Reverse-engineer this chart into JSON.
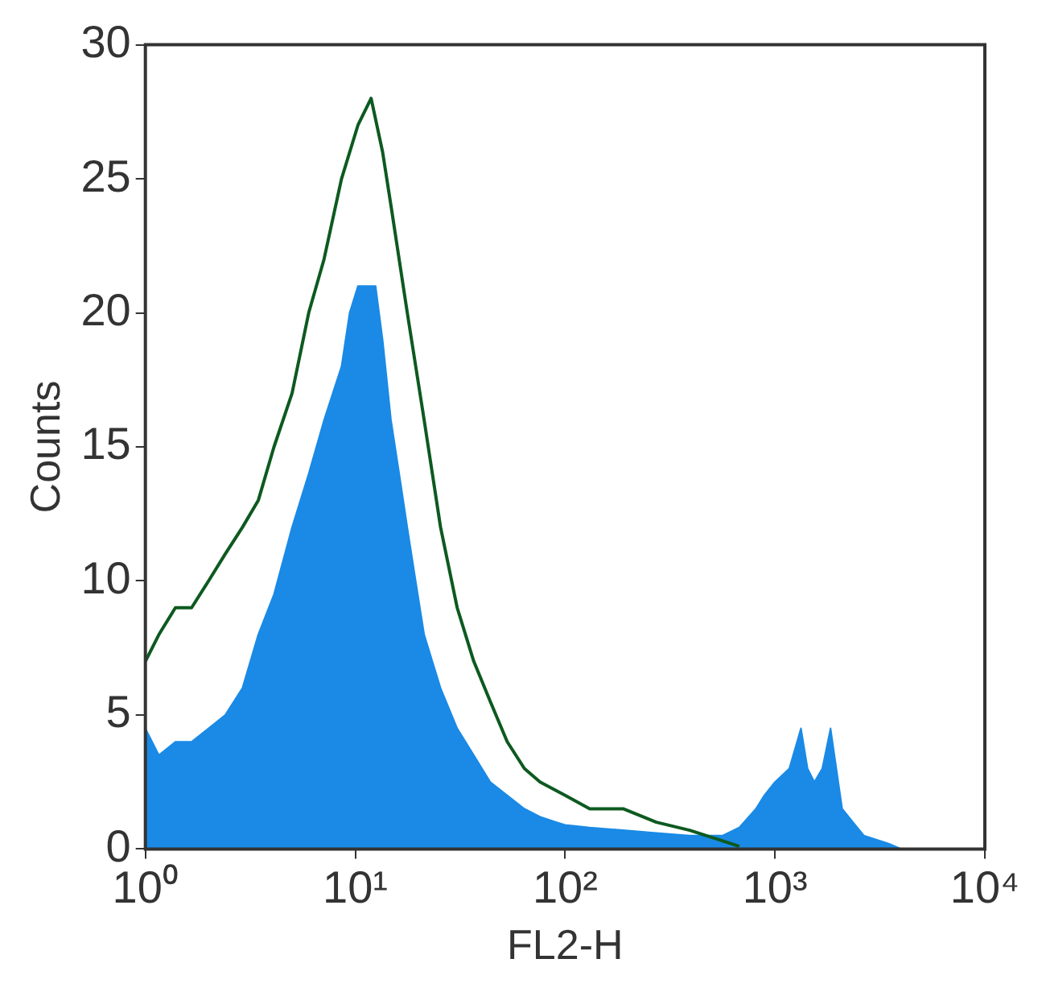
{
  "chart_data": {
    "type": "area",
    "xlabel": "FL2-H",
    "ylabel": "Counts",
    "log": "x",
    "xlim": [
      1,
      10000
    ],
    "ylim": [
      0,
      30
    ],
    "xticks": [
      {
        "value": 1,
        "label": "10⁰"
      },
      {
        "value": 10,
        "label": "10¹"
      },
      {
        "value": 100,
        "label": "10²"
      },
      {
        "value": 1000,
        "label": "10³"
      },
      {
        "value": 10000,
        "label": "10⁴"
      }
    ],
    "yticks": [
      0,
      5,
      10,
      15,
      20,
      25,
      30
    ],
    "grid": false,
    "legend": false,
    "series": [
      {
        "color": "#1a8ae6",
        "x": [
          1,
          1.16,
          1.39,
          1.66,
          2,
          2.4,
          2.9,
          3.45,
          4.1,
          5,
          6,
          7.1,
          8.6,
          9.4,
          10.3,
          11.3,
          12.5,
          13.5,
          14.8,
          16.2,
          17.7,
          19.4,
          21.3,
          23.3,
          25.5,
          30.6,
          36.7,
          44,
          53,
          64,
          76,
          91,
          100,
          131,
          189,
          272,
          392,
          564,
          676,
          811,
          889,
          1000,
          1170,
          1330,
          1430,
          1540,
          1680,
          1840,
          2090,
          2650,
          3480,
          4000
        ],
        "values": [
          4.5,
          3.5,
          4,
          4,
          4.5,
          5,
          6,
          8,
          9.5,
          12,
          14,
          16,
          18,
          20,
          21,
          21,
          21,
          19,
          16,
          14,
          12,
          10,
          8,
          7,
          6,
          4.5,
          3.5,
          2.5,
          2,
          1.5,
          1.2,
          1,
          0.9,
          0.8,
          0.7,
          0.6,
          0.5,
          0.5,
          0.8,
          1.5,
          2,
          2.5,
          3,
          4.5,
          3,
          2.5,
          3,
          4.5,
          1.5,
          0.5,
          0.2,
          0
        ]
      },
      {
        "type": "line",
        "color": "#0d5a20",
        "x": [
          1,
          1.16,
          1.39,
          1.66,
          2,
          2.4,
          2.9,
          3.45,
          4.1,
          5,
          6,
          7.1,
          8.6,
          10.3,
          11.9,
          13.5,
          14.8,
          17.7,
          21.3,
          25.5,
          30.6,
          36.7,
          44,
          53,
          64,
          76,
          100,
          131,
          189,
          272,
          392,
          564,
          676
        ],
        "values": [
          7,
          8,
          9,
          9,
          10,
          11,
          12,
          13,
          15,
          17,
          20,
          22,
          25,
          27,
          28,
          26,
          24,
          20,
          16,
          12,
          9,
          7,
          5.5,
          4,
          3,
          2.5,
          2,
          1.5,
          1.5,
          1,
          0.7,
          0.3,
          0.1
        ]
      }
    ]
  }
}
